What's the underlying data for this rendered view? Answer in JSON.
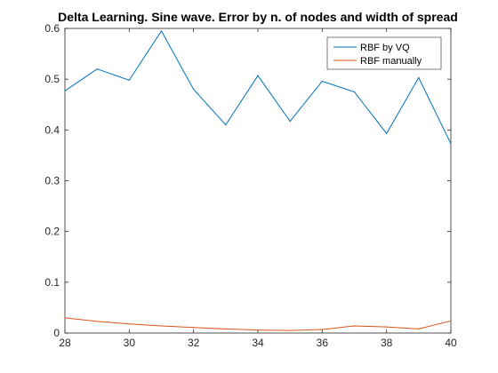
{
  "chart_data": {
    "type": "line",
    "title": "Delta Learning. Sine wave. Error by n. of nodes and width of spread",
    "xlabel": "",
    "ylabel": "",
    "xlim": [
      28,
      40
    ],
    "ylim": [
      0,
      0.6
    ],
    "xticks": [
      28,
      30,
      32,
      34,
      36,
      38,
      40
    ],
    "yticks": [
      0,
      0.1,
      0.2,
      0.3,
      0.4,
      0.5,
      0.6
    ],
    "x": [
      28,
      29,
      30,
      31,
      32,
      33,
      34,
      35,
      36,
      37,
      38,
      39,
      40
    ],
    "grid": false,
    "legend_position": "top-right",
    "series": [
      {
        "name": "RBF by VQ",
        "color": "#0072BD",
        "values": [
          0.477,
          0.52,
          0.498,
          0.595,
          0.48,
          0.41,
          0.507,
          0.417,
          0.496,
          0.475,
          0.393,
          0.503,
          0.373
        ]
      },
      {
        "name": "RBF manually",
        "color": "#D95319",
        "values": [
          0.03,
          0.023,
          0.018,
          0.014,
          0.011,
          0.008,
          0.006,
          0.005,
          0.007,
          0.014,
          0.012,
          0.008,
          0.024
        ]
      }
    ]
  }
}
